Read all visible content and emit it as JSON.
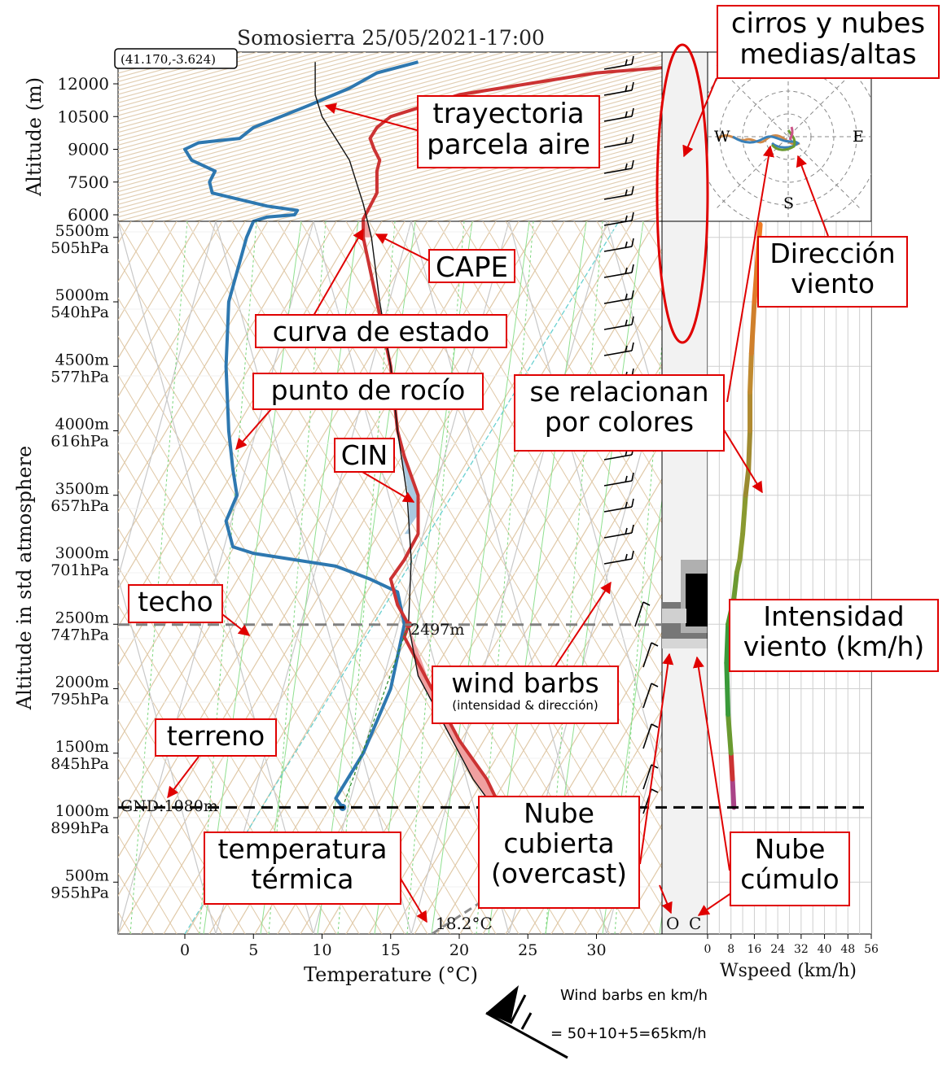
{
  "chart_data": {
    "type": "line",
    "title": "Somosierra 25/05/2021-17:00",
    "coords": "(41.170,-3.624)",
    "xlabel": "Temperature (°C)",
    "ylabel_top": "Altitude (m)",
    "ylabel_main": "Altitude in std atmosphere",
    "xlim": [
      -5,
      35
    ],
    "x_ticks": [
      "0",
      "5",
      "10",
      "15",
      "20",
      "25",
      "30"
    ],
    "upper_y_ticks": [
      "12000",
      "10500",
      "9000",
      "7500",
      "6000"
    ],
    "main_y_ticks": [
      {
        "m": "5500m",
        "p": "505hPa"
      },
      {
        "m": "5000m",
        "p": "540hPa"
      },
      {
        "m": "4500m",
        "p": "577hPa"
      },
      {
        "m": "4000m",
        "p": "616hPa"
      },
      {
        "m": "3500m",
        "p": "657hPa"
      },
      {
        "m": "3000m",
        "p": "701hPa"
      },
      {
        "m": "2500m",
        "p": "747hPa"
      },
      {
        "m": "2000m",
        "p": "795hPa"
      },
      {
        "m": "1500m",
        "p": "845hPa"
      },
      {
        "m": "1000m",
        "p": "899hPa"
      },
      {
        "m": "500m",
        "p": "955hPa"
      }
    ],
    "ground_label": "GND:1080m",
    "ceiling_label": "2497m",
    "thermal_temp_label": "18.2°C",
    "ground_alt_m": 1080,
    "ceiling_alt_m": 2497,
    "series": [
      {
        "name": "punto de rocío",
        "color": "#2e78b0",
        "points": [
          [
            11.5,
            1080
          ],
          [
            11.0,
            1150
          ],
          [
            13,
            1500
          ],
          [
            15,
            2000
          ],
          [
            16,
            2500
          ],
          [
            15.5,
            2750
          ],
          [
            13.5,
            2850
          ],
          [
            11,
            2950
          ],
          [
            8,
            3000
          ],
          [
            5,
            3050
          ],
          [
            3.5,
            3100
          ],
          [
            3,
            3300
          ],
          [
            3.8,
            3500
          ],
          [
            3.5,
            3700
          ],
          [
            3.2,
            4000
          ],
          [
            3.0,
            4500
          ],
          [
            3.2,
            5000
          ],
          [
            4.5,
            5500
          ],
          [
            5,
            5700
          ],
          [
            6,
            5900
          ],
          [
            8,
            6000
          ],
          [
            8.2,
            6200
          ],
          [
            6.0,
            6400
          ],
          [
            2.0,
            7000
          ],
          [
            1.8,
            7500
          ],
          [
            2.2,
            8000
          ],
          [
            0.5,
            8500
          ],
          [
            0,
            9000
          ],
          [
            1.0,
            9300
          ],
          [
            4,
            9500
          ],
          [
            5,
            10000
          ],
          [
            7,
            10500
          ],
          [
            9,
            11000
          ],
          [
            12,
            11800
          ],
          [
            14,
            12500
          ],
          [
            17,
            13000
          ]
        ]
      },
      {
        "name": "curva de estado",
        "color": "#cc3333",
        "points": [
          [
            23,
            1080
          ],
          [
            22,
            1300
          ],
          [
            20,
            1600
          ],
          [
            18,
            2000
          ],
          [
            16,
            2400
          ],
          [
            16.3,
            2497
          ],
          [
            15.5,
            2650
          ],
          [
            15.0,
            2850
          ],
          [
            16,
            3000
          ],
          [
            17,
            3200
          ],
          [
            17.0,
            3500
          ],
          [
            16,
            3800
          ],
          [
            15.5,
            4000
          ],
          [
            15.0,
            4500
          ],
          [
            14.0,
            5000
          ],
          [
            13.0,
            5500
          ],
          [
            13.0,
            5800
          ],
          [
            13.5,
            6400
          ],
          [
            14.0,
            7000
          ],
          [
            14.0,
            7500
          ],
          [
            14.0,
            8000
          ],
          [
            14.2,
            8500
          ],
          [
            13.8,
            9000
          ],
          [
            13.5,
            9500
          ],
          [
            14,
            10000
          ],
          [
            15,
            10500
          ],
          [
            20,
            11500
          ],
          [
            25,
            12000
          ],
          [
            30,
            12500
          ],
          [
            40,
            13000
          ]
        ]
      },
      {
        "name": "trayectoria parcela aire",
        "color": "#111111",
        "points": [
          [
            22.5,
            1080
          ],
          [
            21,
            1300
          ],
          [
            19,
            1700
          ],
          [
            17,
            2100
          ],
          [
            16.3,
            2497
          ],
          [
            16.5,
            3000
          ],
          [
            16.2,
            3500
          ],
          [
            15.5,
            4000
          ],
          [
            15.0,
            4500
          ],
          [
            14.2,
            5000
          ],
          [
            13.6,
            5500
          ],
          [
            13.2,
            6000
          ],
          [
            13.0,
            6500
          ],
          [
            12.5,
            7500
          ],
          [
            12.0,
            8500
          ],
          [
            11.0,
            9500
          ],
          [
            10.0,
            10500
          ],
          [
            9.5,
            11500
          ],
          [
            9.5,
            12500
          ],
          [
            9.5,
            13000
          ]
        ]
      }
    ],
    "wind_speed_axis": {
      "xlabel": "Wspeed (km/h)",
      "ticks": [
        "0",
        "8",
        "16",
        "24",
        "32",
        "40",
        "48",
        "56"
      ],
      "xlim": [
        0,
        56
      ]
    },
    "wind_speed": [
      [
        9,
        1080
      ],
      [
        8.5,
        1300
      ],
      [
        8,
        1500
      ],
      [
        7,
        1800
      ],
      [
        6.5,
        2200
      ],
      [
        7,
        2500
      ],
      [
        9,
        2700
      ],
      [
        10,
        2900
      ],
      [
        11,
        3000
      ],
      [
        12,
        3200
      ],
      [
        13,
        3500
      ],
      [
        14,
        3700
      ],
      [
        14.5,
        4000
      ],
      [
        14.5,
        4300
      ],
      [
        15,
        4600
      ],
      [
        16,
        5000
      ],
      [
        17,
        5300
      ],
      [
        18,
        5600
      ]
    ],
    "cloud_labels": [
      "O",
      "C"
    ],
    "compass": [
      "W",
      "E",
      "S"
    ],
    "legend_note_1": "Wind barbs en km/h",
    "legend_note_2": "= 50+10+5=65km/h"
  },
  "annotations": {
    "cirros": "cirros y nubes\nmedias/altas",
    "trayectoria": "trayectoria\nparcela aire",
    "cape": "CAPE",
    "direccion": "Dirección\nviento",
    "curva": "curva de estado",
    "rocio": "punto de rocío",
    "relacionan": "se relacionan\npor colores",
    "cin": "CIN",
    "techo": "techo",
    "intensidad": "Intensidad\nviento (km/h)",
    "windbarbs": "wind barbs",
    "windbarbs_sub": "(intensidad & dirección)",
    "terreno": "terreno",
    "nube_cubierta": "Nube\ncubierta\n(overcast)",
    "nube_cumulo": "Nube\ncúmulo",
    "temperatura": "temperatura\ntérmica"
  }
}
